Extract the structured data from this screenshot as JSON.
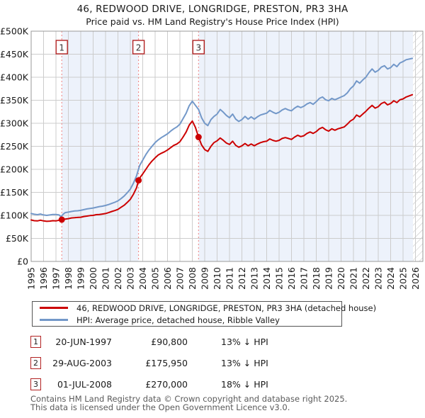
{
  "title": "46, REDWOOD DRIVE, LONGRIDGE, PRESTON, PR3 3HA",
  "subtitle": "Price paid vs. HM Land Registry's House Price Index (HPI)",
  "chart_data": {
    "type": "line",
    "x_range": [
      1995,
      2026.6
    ],
    "ylim": [
      0,
      500000
    ],
    "x_ticks": [
      1995,
      1996,
      1997,
      1998,
      1999,
      2000,
      2001,
      2002,
      2003,
      2004,
      2005,
      2006,
      2007,
      2008,
      2009,
      2010,
      2011,
      2012,
      2013,
      2014,
      2015,
      2016,
      2017,
      2018,
      2019,
      2020,
      2021,
      2022,
      2023,
      2024,
      2025,
      2026
    ],
    "y_ticks": [
      {
        "value": 0,
        "label": "£0"
      },
      {
        "value": 50000,
        "label": "£50K"
      },
      {
        "value": 100000,
        "label": "£100K"
      },
      {
        "value": 150000,
        "label": "£150K"
      },
      {
        "value": 200000,
        "label": "£200K"
      },
      {
        "value": 250000,
        "label": "£250K"
      },
      {
        "value": 300000,
        "label": "£300K"
      },
      {
        "value": 350000,
        "label": "£350K"
      },
      {
        "value": 400000,
        "label": "£400K"
      },
      {
        "value": 450000,
        "label": "£450K"
      },
      {
        "value": 500000,
        "label": "£500K"
      }
    ],
    "grid": true,
    "legend_position": "bottom",
    "colors": {
      "grid": "#cccccc",
      "border": "#9a9a9a",
      "band": "#edf2fb",
      "marker_line": "#f08080",
      "marker_box_border": "#b22222",
      "marker_number": "#333333",
      "dot": "#cc0000",
      "hatch": "#bfbfbf"
    },
    "bands": [
      {
        "from": 1997.47,
        "to": 2003.66
      },
      {
        "from": 2008.5,
        "to": 2025.8
      }
    ],
    "hatch_from": 2025.8,
    "markers": [
      {
        "label": "1",
        "x": 1997.47,
        "value": 90800
      },
      {
        "label": "2",
        "x": 2003.66,
        "value": 175950
      },
      {
        "label": "3",
        "x": 2008.5,
        "value": 270000
      }
    ],
    "series": [
      {
        "name": "46, REDWOOD DRIVE, LONGRIDGE, PRESTON, PR3 3HA (detached house)",
        "color": "#cc0000",
        "points": [
          [
            1995.0,
            90000
          ],
          [
            1995.25,
            88500
          ],
          [
            1995.5,
            88000
          ],
          [
            1995.75,
            89500
          ],
          [
            1996.0,
            88000
          ],
          [
            1996.25,
            87000
          ],
          [
            1996.5,
            87500
          ],
          [
            1996.75,
            88500
          ],
          [
            1997.0,
            88000
          ],
          [
            1997.25,
            89500
          ],
          [
            1997.47,
            90800
          ],
          [
            1997.75,
            92000
          ],
          [
            1998.0,
            93000
          ],
          [
            1998.25,
            94500
          ],
          [
            1998.5,
            95000
          ],
          [
            1998.75,
            95500
          ],
          [
            1999.0,
            96000
          ],
          [
            1999.25,
            97500
          ],
          [
            1999.5,
            98500
          ],
          [
            1999.75,
            99500
          ],
          [
            2000.0,
            100000
          ],
          [
            2000.25,
            101500
          ],
          [
            2000.5,
            102000
          ],
          [
            2000.75,
            103000
          ],
          [
            2001.0,
            104000
          ],
          [
            2001.25,
            106000
          ],
          [
            2001.5,
            108500
          ],
          [
            2001.75,
            110500
          ],
          [
            2002.0,
            113000
          ],
          [
            2002.25,
            117500
          ],
          [
            2002.5,
            122000
          ],
          [
            2002.75,
            128000
          ],
          [
            2003.0,
            135000
          ],
          [
            2003.25,
            146000
          ],
          [
            2003.5,
            160000
          ],
          [
            2003.66,
            175950
          ],
          [
            2003.75,
            181000
          ],
          [
            2004.0,
            190000
          ],
          [
            2004.25,
            200000
          ],
          [
            2004.5,
            210000
          ],
          [
            2004.75,
            218000
          ],
          [
            2005.0,
            225000
          ],
          [
            2005.25,
            231000
          ],
          [
            2005.5,
            235000
          ],
          [
            2005.75,
            238000
          ],
          [
            2006.0,
            242000
          ],
          [
            2006.25,
            247000
          ],
          [
            2006.5,
            252000
          ],
          [
            2006.75,
            255000
          ],
          [
            2007.0,
            260000
          ],
          [
            2007.25,
            270000
          ],
          [
            2007.5,
            281000
          ],
          [
            2007.75,
            296000
          ],
          [
            2008.0,
            305000
          ],
          [
            2008.25,
            291000
          ],
          [
            2008.5,
            270000
          ],
          [
            2008.75,
            253000
          ],
          [
            2009.0,
            243000
          ],
          [
            2009.25,
            239000
          ],
          [
            2009.5,
            250000
          ],
          [
            2009.75,
            258000
          ],
          [
            2010.0,
            262000
          ],
          [
            2010.25,
            268000
          ],
          [
            2010.5,
            263000
          ],
          [
            2010.75,
            257000
          ],
          [
            2011.0,
            254000
          ],
          [
            2011.25,
            261000
          ],
          [
            2011.5,
            252000
          ],
          [
            2011.75,
            248000
          ],
          [
            2012.0,
            251000
          ],
          [
            2012.25,
            256000
          ],
          [
            2012.5,
            251000
          ],
          [
            2012.75,
            255000
          ],
          [
            2013.0,
            251000
          ],
          [
            2013.25,
            255000
          ],
          [
            2013.5,
            258000
          ],
          [
            2013.75,
            260000
          ],
          [
            2014.0,
            261000
          ],
          [
            2014.25,
            266000
          ],
          [
            2014.5,
            263000
          ],
          [
            2014.75,
            261000
          ],
          [
            2015.0,
            263000
          ],
          [
            2015.25,
            267000
          ],
          [
            2015.5,
            269000
          ],
          [
            2015.75,
            267000
          ],
          [
            2016.0,
            265000
          ],
          [
            2016.25,
            270000
          ],
          [
            2016.5,
            274000
          ],
          [
            2016.75,
            271000
          ],
          [
            2017.0,
            273000
          ],
          [
            2017.25,
            278000
          ],
          [
            2017.5,
            281000
          ],
          [
            2017.75,
            278000
          ],
          [
            2018.0,
            282000
          ],
          [
            2018.25,
            288000
          ],
          [
            2018.5,
            291000
          ],
          [
            2018.75,
            286000
          ],
          [
            2019.0,
            283000
          ],
          [
            2019.25,
            288000
          ],
          [
            2019.5,
            285000
          ],
          [
            2019.75,
            288000
          ],
          [
            2020.0,
            290000
          ],
          [
            2020.25,
            292000
          ],
          [
            2020.5,
            298000
          ],
          [
            2020.75,
            305000
          ],
          [
            2021.0,
            309000
          ],
          [
            2021.25,
            318000
          ],
          [
            2021.5,
            314000
          ],
          [
            2021.75,
            320000
          ],
          [
            2022.0,
            326000
          ],
          [
            2022.25,
            333000
          ],
          [
            2022.5,
            339000
          ],
          [
            2022.75,
            333000
          ],
          [
            2023.0,
            336000
          ],
          [
            2023.25,
            343000
          ],
          [
            2023.5,
            346000
          ],
          [
            2023.75,
            340000
          ],
          [
            2024.0,
            343000
          ],
          [
            2024.25,
            349000
          ],
          [
            2024.5,
            345000
          ],
          [
            2024.75,
            351000
          ],
          [
            2025.0,
            353000
          ],
          [
            2025.25,
            357000
          ],
          [
            2025.75,
            362000
          ]
        ]
      },
      {
        "name": "HPI: Average price, detached house, Ribble Valley",
        "color": "#7398c9",
        "points": [
          [
            1995.0,
            104000
          ],
          [
            1995.25,
            102500
          ],
          [
            1995.5,
            101500
          ],
          [
            1995.75,
            103000
          ],
          [
            1996.0,
            101000
          ],
          [
            1996.25,
            100000
          ],
          [
            1996.5,
            101000
          ],
          [
            1996.75,
            102000
          ],
          [
            1997.0,
            102000
          ],
          [
            1997.25,
            101000
          ],
          [
            1997.4,
            97000
          ],
          [
            1997.6,
            103000
          ],
          [
            1997.75,
            106000
          ],
          [
            1998.0,
            107000
          ],
          [
            1998.25,
            108500
          ],
          [
            1998.5,
            109500
          ],
          [
            1998.75,
            110000
          ],
          [
            1999.0,
            111000
          ],
          [
            1999.25,
            112500
          ],
          [
            1999.5,
            114000
          ],
          [
            1999.75,
            115000
          ],
          [
            2000.0,
            116000
          ],
          [
            2000.25,
            117500
          ],
          [
            2000.5,
            119000
          ],
          [
            2000.75,
            120000
          ],
          [
            2001.0,
            121500
          ],
          [
            2001.25,
            123500
          ],
          [
            2001.5,
            126000
          ],
          [
            2001.75,
            128500
          ],
          [
            2002.0,
            131500
          ],
          [
            2002.25,
            136500
          ],
          [
            2002.5,
            142000
          ],
          [
            2002.75,
            149000
          ],
          [
            2003.0,
            157000
          ],
          [
            2003.25,
            170000
          ],
          [
            2003.5,
            186000
          ],
          [
            2003.75,
            208000
          ],
          [
            2004.0,
            220000
          ],
          [
            2004.25,
            232000
          ],
          [
            2004.5,
            242000
          ],
          [
            2004.75,
            250000
          ],
          [
            2005.0,
            258000
          ],
          [
            2005.25,
            264000
          ],
          [
            2005.5,
            269000
          ],
          [
            2005.75,
            273000
          ],
          [
            2006.0,
            277000
          ],
          [
            2006.25,
            283000
          ],
          [
            2006.5,
            288000
          ],
          [
            2006.75,
            292000
          ],
          [
            2007.0,
            298000
          ],
          [
            2007.25,
            310000
          ],
          [
            2007.5,
            322000
          ],
          [
            2007.75,
            338000
          ],
          [
            2008.0,
            348000
          ],
          [
            2008.25,
            339000
          ],
          [
            2008.5,
            330000
          ],
          [
            2008.75,
            312000
          ],
          [
            2009.0,
            300000
          ],
          [
            2009.25,
            295000
          ],
          [
            2009.5,
            308000
          ],
          [
            2009.75,
            315000
          ],
          [
            2010.0,
            320000
          ],
          [
            2010.25,
            330000
          ],
          [
            2010.5,
            324000
          ],
          [
            2010.75,
            317000
          ],
          [
            2011.0,
            312000
          ],
          [
            2011.25,
            320000
          ],
          [
            2011.5,
            309000
          ],
          [
            2011.75,
            304000
          ],
          [
            2012.0,
            308000
          ],
          [
            2012.25,
            315000
          ],
          [
            2012.5,
            309000
          ],
          [
            2012.75,
            314000
          ],
          [
            2013.0,
            309000
          ],
          [
            2013.25,
            314000
          ],
          [
            2013.5,
            318000
          ],
          [
            2013.75,
            320000
          ],
          [
            2014.0,
            322000
          ],
          [
            2014.25,
            328000
          ],
          [
            2014.5,
            324000
          ],
          [
            2014.75,
            321000
          ],
          [
            2015.0,
            324000
          ],
          [
            2015.25,
            329000
          ],
          [
            2015.5,
            332000
          ],
          [
            2015.75,
            329000
          ],
          [
            2016.0,
            327000
          ],
          [
            2016.25,
            333000
          ],
          [
            2016.5,
            337000
          ],
          [
            2016.75,
            334000
          ],
          [
            2017.0,
            337000
          ],
          [
            2017.25,
            342000
          ],
          [
            2017.5,
            345000
          ],
          [
            2017.75,
            341000
          ],
          [
            2018.0,
            347000
          ],
          [
            2018.25,
            354000
          ],
          [
            2018.5,
            357000
          ],
          [
            2018.75,
            351000
          ],
          [
            2019.0,
            349000
          ],
          [
            2019.25,
            354000
          ],
          [
            2019.5,
            351000
          ],
          [
            2019.75,
            354000
          ],
          [
            2020.0,
            357000
          ],
          [
            2020.25,
            360000
          ],
          [
            2020.5,
            366000
          ],
          [
            2020.75,
            375000
          ],
          [
            2021.0,
            381000
          ],
          [
            2021.25,
            392000
          ],
          [
            2021.5,
            387000
          ],
          [
            2021.75,
            394000
          ],
          [
            2022.0,
            400000
          ],
          [
            2022.25,
            410000
          ],
          [
            2022.5,
            418000
          ],
          [
            2022.75,
            411000
          ],
          [
            2023.0,
            415000
          ],
          [
            2023.25,
            422000
          ],
          [
            2023.5,
            425000
          ],
          [
            2023.75,
            418000
          ],
          [
            2024.0,
            421000
          ],
          [
            2024.25,
            428000
          ],
          [
            2024.5,
            423000
          ],
          [
            2024.75,
            431000
          ],
          [
            2025.0,
            434000
          ],
          [
            2025.25,
            438000
          ],
          [
            2025.75,
            441000
          ]
        ]
      }
    ]
  },
  "transactions": [
    {
      "num": "1",
      "date": "20-JUN-1997",
      "price": "£90,800",
      "hpi": "13% ↓ HPI"
    },
    {
      "num": "2",
      "date": "29-AUG-2003",
      "price": "£175,950",
      "hpi": "13% ↓ HPI"
    },
    {
      "num": "3",
      "date": "01-JUL-2008",
      "price": "£270,000",
      "hpi": "18% ↓ HPI"
    }
  ],
  "footer": {
    "line1": "Contains HM Land Registry data © Crown copyright and database right 2025.",
    "line2": "This data is licensed under the Open Government Licence v3.0."
  }
}
